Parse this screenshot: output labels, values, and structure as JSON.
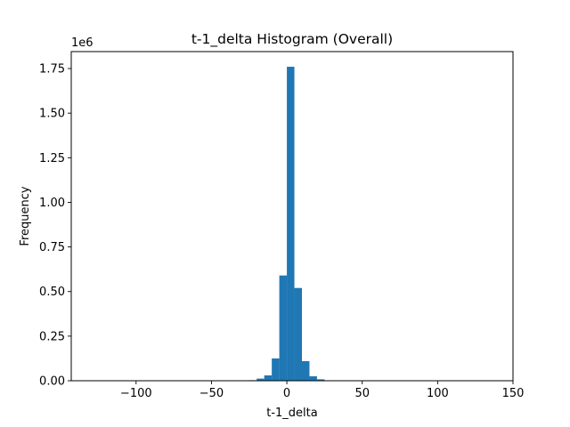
{
  "chart_data": {
    "type": "bar",
    "title": "t-1_delta Histogram (Overall)",
    "xlabel": "t-1_delta",
    "ylabel": "Frequency",
    "y_offset_label": "1e6",
    "xlim": [
      -143,
      150
    ],
    "ylim": [
      0,
      1845000
    ],
    "x_ticks": [
      -100,
      -50,
      0,
      50,
      100,
      150
    ],
    "x_tick_labels": [
      "−100",
      "−50",
      "0",
      "50",
      "100",
      "150"
    ],
    "y_ticks": [
      0,
      250000,
      500000,
      750000,
      1000000,
      1250000,
      1500000,
      1750000
    ],
    "y_tick_labels": [
      "0.00",
      "0.25",
      "0.50",
      "0.75",
      "1.00",
      "1.25",
      "1.50",
      "1.75"
    ],
    "grid": false,
    "legend": "none",
    "bar_color": "#1f77b4",
    "bins": [
      {
        "x0": -25,
        "x1": -20,
        "value": 3000
      },
      {
        "x0": -20,
        "x1": -15,
        "value": 12000
      },
      {
        "x0": -15,
        "x1": -10,
        "value": 30000
      },
      {
        "x0": -10,
        "x1": -5,
        "value": 125000
      },
      {
        "x0": -5,
        "x1": 0,
        "value": 590000
      },
      {
        "x0": 0,
        "x1": 5,
        "value": 1760000
      },
      {
        "x0": 5,
        "x1": 10,
        "value": 520000
      },
      {
        "x0": 10,
        "x1": 15,
        "value": 110000
      },
      {
        "x0": 15,
        "x1": 20,
        "value": 25000
      },
      {
        "x0": 20,
        "x1": 25,
        "value": 8000
      },
      {
        "x0": 25,
        "x1": 30,
        "value": 2000
      }
    ]
  }
}
